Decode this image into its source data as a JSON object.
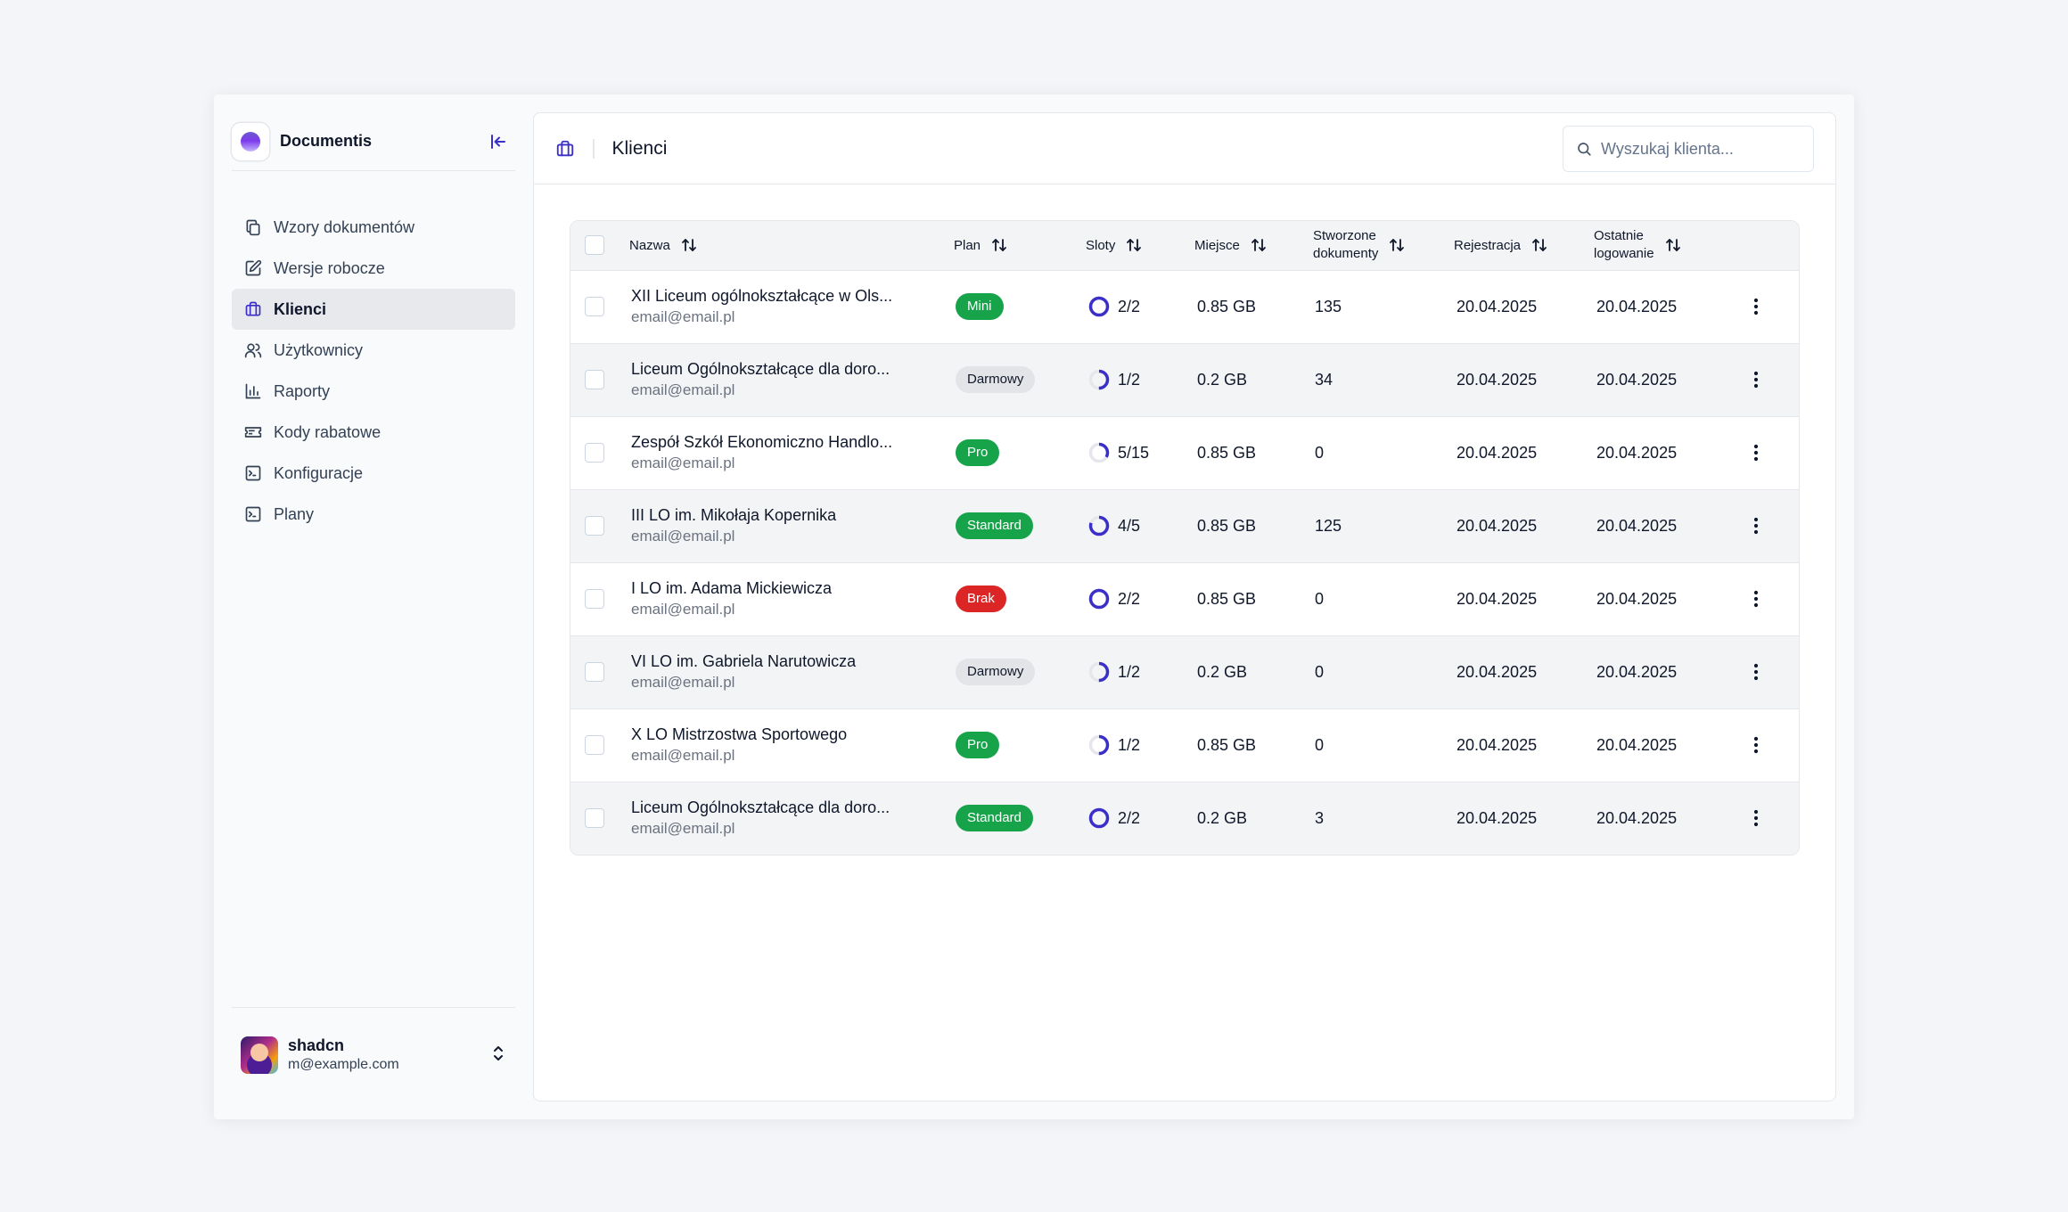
{
  "app": {
    "name": "Documentis"
  },
  "sidebar": {
    "items": [
      {
        "label": "Wzory dokumentów",
        "icon": "copy-icon",
        "active": false
      },
      {
        "label": "Wersje robocze",
        "icon": "edit-icon",
        "active": false
      },
      {
        "label": "Klienci",
        "icon": "briefcase-icon",
        "active": true
      },
      {
        "label": "Użytkownicy",
        "icon": "users-icon",
        "active": false
      },
      {
        "label": "Raporty",
        "icon": "bar-chart-icon",
        "active": false
      },
      {
        "label": "Kody rabatowe",
        "icon": "ticket-icon",
        "active": false
      },
      {
        "label": "Konfiguracje",
        "icon": "terminal-icon",
        "active": false
      },
      {
        "label": "Plany",
        "icon": "terminal-icon",
        "active": false
      }
    ]
  },
  "user": {
    "name": "shadcn",
    "email": "m@example.com"
  },
  "header": {
    "title": "Klienci",
    "search_placeholder": "Wyszukaj klienta..."
  },
  "table": {
    "columns": {
      "name": "Nazwa",
      "plan": "Plan",
      "slots": "Sloty",
      "space": "Miejsce",
      "docs_line1": "Stworzone",
      "docs_line2": "dokumenty",
      "registration": "Rejestracja",
      "login_line1": "Ostatnie",
      "login_line2": "logowanie"
    },
    "rows": [
      {
        "name": "XII Liceum ogólnokształcące w Ols...",
        "email": "email@email.pl",
        "plan": "Mini",
        "plan_color": "green",
        "slots": "2/2",
        "slots_used": 2,
        "slots_total": 2,
        "space": "0.85 GB",
        "docs": "135",
        "registration": "20.04.2025",
        "last_login": "20.04.2025"
      },
      {
        "name": "Liceum Ogólnokształcące dla doro...",
        "email": "email@email.pl",
        "plan": "Darmowy",
        "plan_color": "gray",
        "slots": "1/2",
        "slots_used": 1,
        "slots_total": 2,
        "space": "0.2 GB",
        "docs": "34",
        "registration": "20.04.2025",
        "last_login": "20.04.2025"
      },
      {
        "name": "Zespół Szkół Ekonomiczno Handlo...",
        "email": "email@email.pl",
        "plan": "Pro",
        "plan_color": "green",
        "slots": "5/15",
        "slots_used": 5,
        "slots_total": 15,
        "space": "0.85 GB",
        "docs": "0",
        "registration": "20.04.2025",
        "last_login": "20.04.2025"
      },
      {
        "name": "III LO im. Mikołaja Kopernika",
        "email": "email@email.pl",
        "plan": "Standard",
        "plan_color": "green",
        "slots": "4/5",
        "slots_used": 4,
        "slots_total": 5,
        "space": "0.85 GB",
        "docs": "125",
        "registration": "20.04.2025",
        "last_login": "20.04.2025"
      },
      {
        "name": "I LO im. Adama Mickiewicza",
        "email": "email@email.pl",
        "plan": "Brak",
        "plan_color": "red",
        "slots": "2/2",
        "slots_used": 2,
        "slots_total": 2,
        "space": "0.85 GB",
        "docs": "0",
        "registration": "20.04.2025",
        "last_login": "20.04.2025"
      },
      {
        "name": "VI LO im. Gabriela Narutowicza",
        "email": "email@email.pl",
        "plan": "Darmowy",
        "plan_color": "gray",
        "slots": "1/2",
        "slots_used": 1,
        "slots_total": 2,
        "space": "0.2 GB",
        "docs": "0",
        "registration": "20.04.2025",
        "last_login": "20.04.2025"
      },
      {
        "name": "X LO Mistrzostwa Sportowego",
        "email": "email@email.pl",
        "plan": "Pro",
        "plan_color": "green",
        "slots": "1/2",
        "slots_used": 1,
        "slots_total": 2,
        "space": "0.85 GB",
        "docs": "0",
        "registration": "20.04.2025",
        "last_login": "20.04.2025"
      },
      {
        "name": "Liceum Ogólnokształcące dla doro...",
        "email": "email@email.pl",
        "plan": "Standard",
        "plan_color": "green",
        "slots": "2/2",
        "slots_used": 2,
        "slots_total": 2,
        "space": "0.2 GB",
        "docs": "3",
        "registration": "20.04.2025",
        "last_login": "20.04.2025"
      }
    ]
  },
  "colors": {
    "accent": "#3b2fc9",
    "green": "#16a34a",
    "red": "#dc2626",
    "track": "#e5e7eb"
  }
}
